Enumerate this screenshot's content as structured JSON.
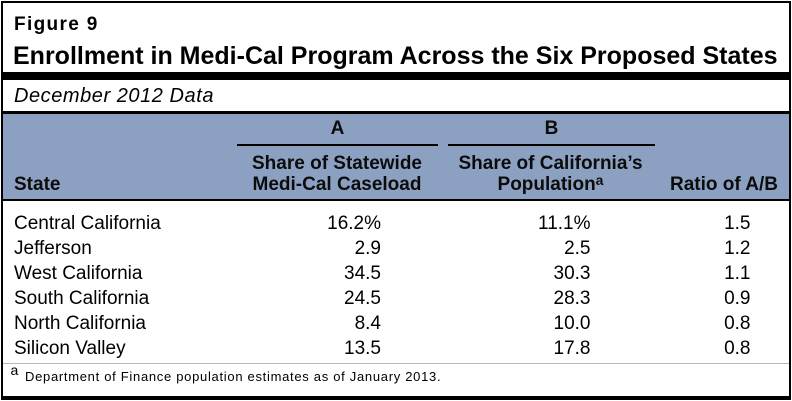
{
  "figure": {
    "label": "Figure 9",
    "title": "Enrollment in Medi-Cal Program Across the Six Proposed States",
    "subtitle": "December 2012 Data"
  },
  "table": {
    "group_columns": [
      {
        "letter": "A",
        "header_line1": "Share of Statewide",
        "header_line2": "Medi-Cal Caseload"
      },
      {
        "letter": "B",
        "header_line1": "Share of California’s",
        "header_line2": "Population",
        "header_superscript": "a"
      }
    ],
    "state_header": "State",
    "ratio_header": "Ratio of A/B",
    "rows": [
      {
        "state": "Central California",
        "share_caseload": "16.2%",
        "share_population": "11.1%",
        "ratio": "1.5"
      },
      {
        "state": "Jefferson",
        "share_caseload": "2.9",
        "share_population": "2.5",
        "ratio": "1.2"
      },
      {
        "state": "West California",
        "share_caseload": "34.5",
        "share_population": "30.3",
        "ratio": "1.1"
      },
      {
        "state": "South California",
        "share_caseload": "24.5",
        "share_population": "28.3",
        "ratio": "0.9"
      },
      {
        "state": "North California",
        "share_caseload": "8.4",
        "share_population": "10.0",
        "ratio": "0.8"
      },
      {
        "state": "Silicon Valley",
        "share_caseload": "13.5",
        "share_population": "17.8",
        "ratio": "0.8"
      }
    ],
    "footnote_marker": "a",
    "footnote_text": "Department of Finance population estimates as of January 2013."
  },
  "colors": {
    "band_background": "#8CA1C2",
    "border": "#000000",
    "text": "#000000",
    "footnote_rule": "#B7B7B7"
  },
  "chart_data": {
    "type": "table",
    "title": "Enrollment in Medi-Cal Program Across the Six Proposed States",
    "subtitle": "December 2012 Data",
    "figure_label": "Figure 9",
    "columns": [
      "State",
      "A: Share of Statewide Medi-Cal Caseload",
      "B: Share of California's Population",
      "Ratio of A/B"
    ],
    "rows": [
      [
        "Central California",
        "16.2%",
        "11.1%",
        1.5
      ],
      [
        "Jefferson",
        "2.9",
        "2.5",
        1.2
      ],
      [
        "West California",
        "34.5",
        "30.3",
        1.1
      ],
      [
        "South California",
        "24.5",
        "28.3",
        0.9
      ],
      [
        "North California",
        "8.4",
        "10.0",
        0.8
      ],
      [
        "Silicon Valley",
        "13.5",
        "17.8",
        0.8
      ]
    ],
    "footnote": "a Department of Finance population estimates as of January 2013."
  }
}
